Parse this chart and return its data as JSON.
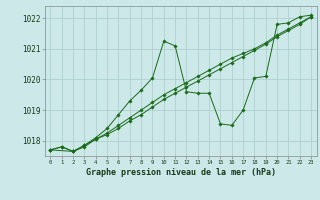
{
  "bg_color": "#cce8e8",
  "grid_color": "#aacccc",
  "line_color": "#1a6b1a",
  "title": "Graphe pression niveau de la mer (hPa)",
  "ylabel_ticks": [
    1018,
    1019,
    1020,
    1021,
    1022
  ],
  "xlim": [
    -0.5,
    23.5
  ],
  "ylim": [
    1017.5,
    1022.4
  ],
  "line1": {
    "x": [
      0,
      1,
      2,
      3,
      4,
      5,
      6,
      7,
      8,
      9,
      10,
      11,
      12,
      13,
      14,
      15,
      16,
      17,
      18,
      19,
      20,
      21,
      22,
      23
    ],
    "y": [
      1017.7,
      1017.8,
      1017.65,
      1017.8,
      1018.05,
      1018.2,
      1018.4,
      1018.65,
      1018.85,
      1019.1,
      1019.35,
      1019.55,
      1019.75,
      1019.95,
      1020.15,
      1020.35,
      1020.55,
      1020.75,
      1020.95,
      1021.15,
      1021.4,
      1021.6,
      1021.8,
      1022.05
    ]
  },
  "line2": {
    "x": [
      0,
      1,
      2,
      3,
      4,
      5,
      6,
      7,
      8,
      9,
      10,
      11,
      12,
      13,
      14,
      15,
      16,
      17,
      18,
      19,
      20,
      21,
      22,
      23
    ],
    "y": [
      1017.7,
      1017.8,
      1017.65,
      1017.85,
      1018.05,
      1018.25,
      1018.5,
      1018.75,
      1019.0,
      1019.25,
      1019.5,
      1019.7,
      1019.9,
      1020.1,
      1020.3,
      1020.5,
      1020.7,
      1020.85,
      1021.0,
      1021.2,
      1021.45,
      1021.65,
      1021.85,
      1022.05
    ]
  },
  "line3": {
    "x": [
      0,
      2,
      3,
      4,
      5,
      6,
      7,
      8,
      9,
      10,
      11,
      12,
      13,
      14,
      15,
      16,
      17,
      18,
      19,
      20,
      21,
      22,
      23
    ],
    "y": [
      1017.7,
      1017.65,
      1017.85,
      1018.1,
      1018.4,
      1018.85,
      1019.3,
      1019.65,
      1020.05,
      1021.25,
      1021.1,
      1019.6,
      1019.55,
      1019.55,
      1018.55,
      1018.5,
      1019.0,
      1020.05,
      1020.1,
      1021.8,
      1021.85,
      1022.05,
      1022.1
    ]
  }
}
